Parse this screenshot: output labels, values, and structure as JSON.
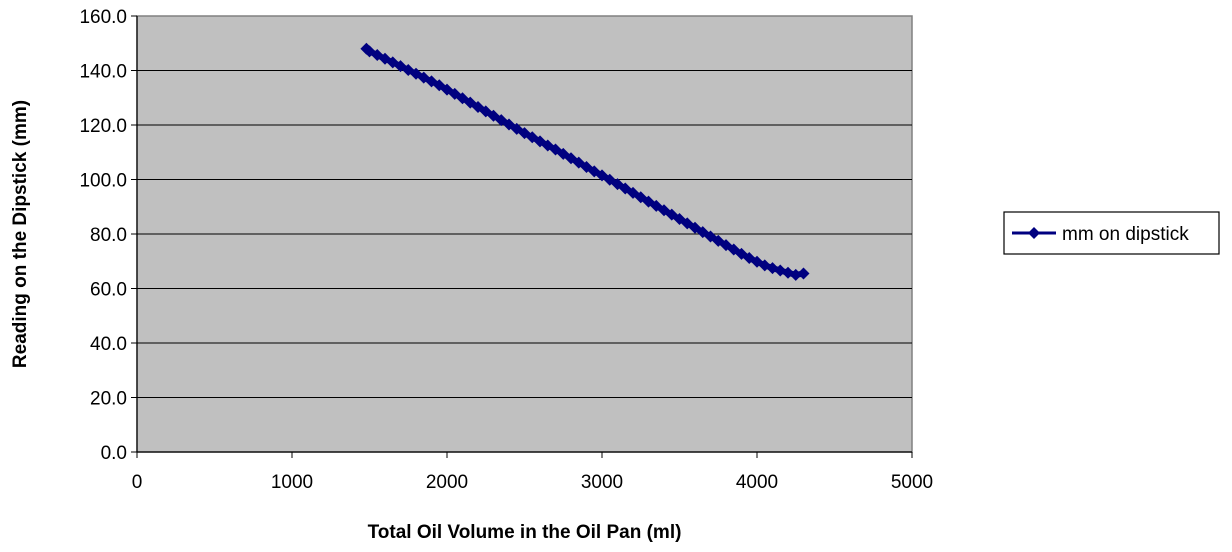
{
  "chart_data": {
    "type": "line",
    "title": "",
    "xlabel": "Total Oil Volume in the Oil Pan (ml)",
    "ylabel": "Reading on the Dipstick (mm)",
    "xlim": [
      0,
      5000
    ],
    "ylim": [
      0,
      160
    ],
    "x_ticks": [
      0,
      1000,
      2000,
      3000,
      4000,
      5000
    ],
    "x_tick_labels": [
      "0",
      "1000",
      "2000",
      "3000",
      "4000",
      "5000"
    ],
    "y_ticks": [
      0,
      20,
      40,
      60,
      80,
      100,
      120,
      140,
      160
    ],
    "y_tick_labels": [
      "0.0",
      "20.0",
      "40.0",
      "60.0",
      "80.0",
      "100.0",
      "120.0",
      "140.0",
      "160.0"
    ],
    "grid": true,
    "plot_background": "#c0c0c0",
    "legend_position": "right",
    "series": [
      {
        "name": "mm on dipstick",
        "color": "#000080",
        "marker": "diamond",
        "x": [
          1480,
          1500,
          1550,
          1600,
          1650,
          1700,
          1750,
          1800,
          1850,
          1900,
          1950,
          2000,
          2050,
          2100,
          2150,
          2200,
          2250,
          2300,
          2350,
          2400,
          2450,
          2500,
          2550,
          2600,
          2650,
          2700,
          2750,
          2800,
          2850,
          2900,
          2950,
          3000,
          3050,
          3100,
          3150,
          3200,
          3250,
          3300,
          3350,
          3400,
          3450,
          3500,
          3550,
          3600,
          3650,
          3700,
          3750,
          3800,
          3850,
          3900,
          3950,
          4000,
          4050,
          4100,
          4150,
          4200,
          4250,
          4300
        ],
        "y": [
          148.0,
          147.0,
          145.7,
          144.3,
          143.0,
          141.6,
          140.2,
          138.8,
          137.4,
          136.0,
          134.6,
          133.0,
          131.4,
          129.8,
          128.2,
          126.6,
          125.0,
          123.4,
          121.8,
          120.2,
          118.6,
          117.0,
          115.5,
          114.0,
          112.5,
          111.0,
          109.4,
          107.8,
          106.2,
          104.6,
          103.0,
          101.5,
          99.9,
          98.3,
          96.7,
          95.1,
          93.5,
          91.9,
          90.3,
          88.7,
          87.1,
          85.5,
          83.9,
          82.3,
          80.7,
          79.1,
          77.5,
          75.9,
          74.3,
          72.7,
          71.2,
          69.8,
          68.5,
          67.5,
          66.6,
          65.8,
          65.0,
          65.5
        ]
      }
    ]
  }
}
